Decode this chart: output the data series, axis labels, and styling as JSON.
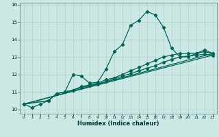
{
  "title": "",
  "xlabel": "Humidex (Indice chaleur)",
  "bg_color": "#cce8e4",
  "grid_color": "#aad4cc",
  "line_color": "#006655",
  "xlim": [
    -0.5,
    23.5
  ],
  "ylim": [
    9.75,
    16.1
  ],
  "xticks": [
    0,
    1,
    2,
    3,
    4,
    5,
    6,
    7,
    8,
    9,
    10,
    11,
    12,
    13,
    14,
    15,
    16,
    17,
    18,
    19,
    20,
    21,
    22,
    23
  ],
  "yticks": [
    10,
    11,
    12,
    13,
    14,
    15,
    16
  ],
  "line1_x": [
    0,
    1,
    2,
    3,
    4,
    5,
    6,
    7,
    8,
    9,
    10,
    11,
    12,
    13,
    14,
    15,
    16,
    17,
    18,
    19,
    20,
    21,
    22,
    23
  ],
  "line1_y": [
    10.3,
    10.1,
    10.3,
    10.5,
    10.9,
    11.0,
    12.0,
    11.9,
    11.5,
    11.55,
    12.3,
    13.3,
    13.7,
    14.8,
    15.1,
    15.6,
    15.4,
    14.7,
    13.5,
    13.0,
    13.0,
    13.2,
    13.4,
    13.2
  ],
  "line2_x": [
    0,
    3,
    4,
    5,
    6,
    7,
    8,
    9,
    10,
    11,
    12,
    13,
    14,
    15,
    16,
    17,
    18,
    19,
    20,
    21,
    22,
    23
  ],
  "line2_y": [
    10.3,
    10.5,
    10.9,
    11.0,
    11.1,
    11.3,
    11.4,
    11.5,
    11.7,
    11.8,
    12.0,
    12.2,
    12.4,
    12.6,
    12.8,
    13.0,
    13.1,
    13.2,
    13.2,
    13.2,
    13.3,
    13.2
  ],
  "line3_x": [
    0,
    3,
    4,
    5,
    6,
    7,
    8,
    9,
    10,
    11,
    12,
    13,
    14,
    15,
    16,
    17,
    18,
    19,
    20,
    21,
    22,
    23
  ],
  "line3_y": [
    10.3,
    10.5,
    10.9,
    11.0,
    11.1,
    11.25,
    11.35,
    11.45,
    11.6,
    11.75,
    11.9,
    12.05,
    12.2,
    12.35,
    12.5,
    12.7,
    12.85,
    13.0,
    13.05,
    13.1,
    13.15,
    13.1
  ],
  "line4_x": [
    0,
    23
  ],
  "line4_y": [
    10.3,
    13.2
  ],
  "line5_x": [
    0,
    23
  ],
  "line5_y": [
    10.3,
    13.1
  ]
}
